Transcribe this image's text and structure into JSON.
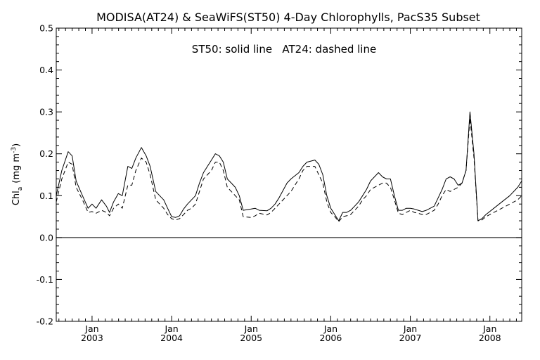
{
  "chart_data": {
    "type": "line",
    "title": "MODISA(AT24) & SeaWiFS(ST50) 4-Day Chlorophylls, PacS35 Subset",
    "annotation": {
      "part1": "ST50: solid line",
      "part2": "AT24: dashed line"
    },
    "ylabel": {
      "main": "Chl",
      "sub": "a",
      "units_open": "(mg m",
      "units_sup": "-3",
      "units_close": ")"
    },
    "xlabel": "",
    "ylim": [
      -0.2,
      0.5
    ],
    "y_ticks": [
      "0.5",
      "0.4",
      "0.3",
      "0.2",
      "0.1",
      "0.0",
      "-0.1",
      "-0.2"
    ],
    "xlim": [
      2002.55,
      2008.4
    ],
    "x_ticks": [
      {
        "month": "Jan",
        "year": "2003"
      },
      {
        "month": "Jan",
        "year": "2004"
      },
      {
        "month": "Jan",
        "year": "2005"
      },
      {
        "month": "Jan",
        "year": "2006"
      },
      {
        "month": "Jan",
        "year": "2007"
      },
      {
        "month": "Jan",
        "year": "2008"
      }
    ],
    "zero_line": 0.0,
    "grid": false,
    "series": [
      {
        "name": "ST50",
        "style": "solid",
        "x": [
          2002.55,
          2002.62,
          2002.7,
          2002.75,
          2002.8,
          2002.88,
          2002.95,
          2003.0,
          2003.05,
          2003.12,
          2003.18,
          2003.22,
          2003.27,
          2003.33,
          2003.38,
          2003.45,
          2003.5,
          2003.55,
          2003.62,
          2003.68,
          2003.73,
          2003.8,
          2003.85,
          2003.9,
          2003.95,
          2004.0,
          2004.05,
          2004.1,
          2004.15,
          2004.2,
          2004.25,
          2004.3,
          2004.35,
          2004.4,
          2004.5,
          2004.55,
          2004.6,
          2004.65,
          2004.7,
          2004.75,
          2004.8,
          2004.85,
          2004.9,
          2005.0,
          2005.05,
          2005.1,
          2005.2,
          2005.25,
          2005.3,
          2005.35,
          2005.45,
          2005.5,
          2005.6,
          2005.65,
          2005.7,
          2005.8,
          2005.85,
          2005.9,
          2005.95,
          2006.0,
          2006.05,
          2006.1,
          2006.15,
          2006.2,
          2006.25,
          2006.3,
          2006.35,
          2006.4,
          2006.45,
          2006.5,
          2006.6,
          2006.65,
          2006.7,
          2006.75,
          2006.8,
          2006.85,
          2006.9,
          2006.95,
          2007.0,
          2007.05,
          2007.1,
          2007.15,
          2007.2,
          2007.25,
          2007.3,
          2007.35,
          2007.4,
          2007.45,
          2007.5,
          2007.55,
          2007.6,
          2007.65,
          2007.7,
          2007.75,
          2007.8,
          2007.85,
          2007.9,
          2007.95,
          2008.05,
          2008.15,
          2008.25,
          2008.35,
          2008.4
        ],
        "y": [
          0.1,
          0.16,
          0.205,
          0.195,
          0.135,
          0.1,
          0.07,
          0.08,
          0.07,
          0.09,
          0.075,
          0.06,
          0.085,
          0.105,
          0.1,
          0.17,
          0.165,
          0.19,
          0.215,
          0.195,
          0.17,
          0.11,
          0.1,
          0.09,
          0.07,
          0.05,
          0.048,
          0.052,
          0.068,
          0.08,
          0.09,
          0.1,
          0.13,
          0.155,
          0.185,
          0.2,
          0.195,
          0.18,
          0.14,
          0.13,
          0.12,
          0.1,
          0.065,
          0.068,
          0.07,
          0.065,
          0.064,
          0.07,
          0.08,
          0.095,
          0.13,
          0.14,
          0.155,
          0.17,
          0.18,
          0.185,
          0.175,
          0.15,
          0.1,
          0.07,
          0.055,
          0.04,
          0.06,
          0.06,
          0.065,
          0.075,
          0.085,
          0.1,
          0.115,
          0.135,
          0.155,
          0.145,
          0.14,
          0.14,
          0.1,
          0.065,
          0.065,
          0.07,
          0.07,
          0.068,
          0.065,
          0.062,
          0.065,
          0.07,
          0.075,
          0.095,
          0.115,
          0.14,
          0.145,
          0.14,
          0.125,
          0.13,
          0.16,
          0.3,
          0.2,
          0.04,
          0.045,
          0.055,
          0.07,
          0.085,
          0.1,
          0.12,
          0.135
        ]
      },
      {
        "name": "AT24",
        "style": "dashed",
        "x": [
          2002.55,
          2002.62,
          2002.7,
          2002.75,
          2002.8,
          2002.88,
          2002.95,
          2003.0,
          2003.05,
          2003.12,
          2003.18,
          2003.22,
          2003.27,
          2003.33,
          2003.38,
          2003.45,
          2003.5,
          2003.55,
          2003.62,
          2003.68,
          2003.73,
          2003.8,
          2003.85,
          2003.9,
          2003.95,
          2004.0,
          2004.05,
          2004.1,
          2004.15,
          2004.2,
          2004.25,
          2004.3,
          2004.35,
          2004.4,
          2004.5,
          2004.55,
          2004.6,
          2004.65,
          2004.7,
          2004.75,
          2004.8,
          2004.85,
          2004.9,
          2005.0,
          2005.05,
          2005.1,
          2005.2,
          2005.25,
          2005.3,
          2005.35,
          2005.45,
          2005.5,
          2005.6,
          2005.65,
          2005.7,
          2005.8,
          2005.85,
          2005.9,
          2005.95,
          2006.0,
          2006.05,
          2006.1,
          2006.15,
          2006.2,
          2006.25,
          2006.3,
          2006.35,
          2006.4,
          2006.45,
          2006.5,
          2006.6,
          2006.65,
          2006.7,
          2006.75,
          2006.8,
          2006.85,
          2006.9,
          2006.95,
          2007.0,
          2007.05,
          2007.1,
          2007.15,
          2007.2,
          2007.25,
          2007.3,
          2007.35,
          2007.4,
          2007.45,
          2007.5,
          2007.55,
          2007.6,
          2007.65,
          2007.7,
          2007.75,
          2007.8,
          2007.85,
          2007.9,
          2007.95,
          2008.05,
          2008.15,
          2008.25,
          2008.35,
          2008.4
        ],
        "y": [
          0.085,
          0.14,
          0.18,
          0.175,
          0.12,
          0.09,
          0.06,
          0.062,
          0.058,
          0.065,
          0.06,
          0.052,
          0.07,
          0.08,
          0.07,
          0.125,
          0.125,
          0.16,
          0.19,
          0.18,
          0.15,
          0.09,
          0.08,
          0.07,
          0.055,
          0.045,
          0.042,
          0.045,
          0.055,
          0.065,
          0.07,
          0.08,
          0.11,
          0.14,
          0.16,
          0.18,
          0.18,
          0.16,
          0.12,
          0.11,
          0.1,
          0.09,
          0.05,
          0.048,
          0.052,
          0.058,
          0.054,
          0.06,
          0.07,
          0.08,
          0.1,
          0.11,
          0.14,
          0.16,
          0.17,
          0.17,
          0.15,
          0.13,
          0.085,
          0.06,
          0.05,
          0.038,
          0.05,
          0.052,
          0.055,
          0.065,
          0.075,
          0.09,
          0.1,
          0.115,
          0.125,
          0.13,
          0.13,
          0.12,
          0.09,
          0.058,
          0.055,
          0.06,
          0.065,
          0.06,
          0.058,
          0.055,
          0.055,
          0.06,
          0.065,
          0.08,
          0.1,
          0.115,
          0.11,
          0.115,
          0.12,
          0.13,
          0.16,
          0.285,
          0.19,
          0.04,
          0.042,
          0.05,
          0.06,
          0.07,
          0.08,
          0.09,
          0.1
        ]
      }
    ]
  }
}
